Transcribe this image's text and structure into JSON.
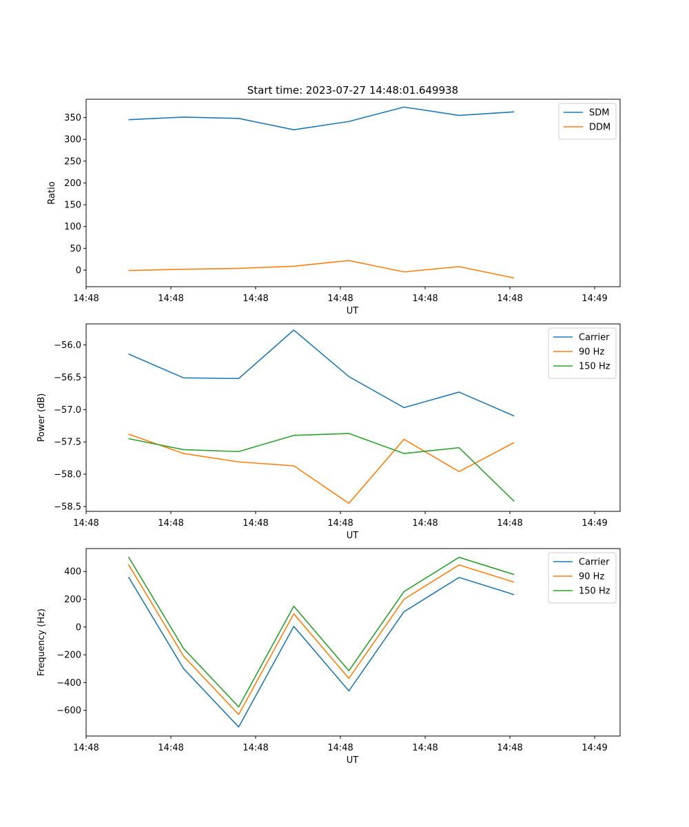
{
  "figure_title": "Start time: 2023-07-27 14:48:01.649938",
  "chart_data": [
    {
      "type": "line",
      "name": "ratio",
      "title": "Start time: 2023-07-27 14:48:01.649938",
      "xlabel": "UT",
      "ylabel": "Ratio",
      "xlim": [
        0,
        6.3
      ],
      "ylim": [
        -38,
        392
      ],
      "yticks": [
        0,
        50,
        100,
        150,
        200,
        250,
        300,
        350
      ],
      "ytick_labels": [
        "0",
        "50",
        "100",
        "150",
        "200",
        "250",
        "300",
        "350"
      ],
      "xticks": [
        0,
        1,
        2,
        3,
        4,
        5,
        6
      ],
      "xtick_labels": [
        "14:48",
        "14:48",
        "14:48",
        "14:48",
        "14:48",
        "14:48",
        "14:49"
      ],
      "x": [
        0.5,
        1.15,
        1.8,
        2.45,
        3.1,
        3.75,
        4.4,
        5.05
      ],
      "series": [
        {
          "name": "SDM",
          "color": "#1f77b4",
          "values": [
            345,
            351,
            348,
            322,
            341,
            374,
            355,
            363
          ]
        },
        {
          "name": "DDM",
          "color": "#ff7f0e",
          "values": [
            -1,
            2,
            4,
            9,
            22,
            -4,
            8,
            -18
          ]
        }
      ],
      "legend": "upper right"
    },
    {
      "type": "line",
      "name": "power",
      "title": "",
      "xlabel": "UT",
      "ylabel": "Power (dB)",
      "xlim": [
        0,
        6.3
      ],
      "ylim": [
        -58.575,
        -55.675
      ],
      "yticks": [
        -58.5,
        -58.0,
        -57.5,
        -57.0,
        -56.5,
        -56.0
      ],
      "ytick_labels": [
        "−58.5",
        "−58.0",
        "−57.5",
        "−57.0",
        "−56.5",
        "−56.0"
      ],
      "xticks": [
        0,
        1,
        2,
        3,
        4,
        5,
        6
      ],
      "xtick_labels": [
        "14:48",
        "14:48",
        "14:48",
        "14:48",
        "14:48",
        "14:48",
        "14:49"
      ],
      "x": [
        0.5,
        1.15,
        1.8,
        2.45,
        3.1,
        3.75,
        4.4,
        5.05
      ],
      "series": [
        {
          "name": "Carrier",
          "color": "#1f77b4",
          "values": [
            -56.14,
            -56.51,
            -56.52,
            -55.77,
            -56.49,
            -56.97,
            -56.73,
            -57.1
          ]
        },
        {
          "name": "90 Hz",
          "color": "#ff7f0e",
          "values": [
            -57.38,
            -57.68,
            -57.81,
            -57.87,
            -58.45,
            -57.46,
            -57.96,
            -57.51
          ]
        },
        {
          "name": "150 Hz",
          "color": "#2ca02c",
          "values": [
            -57.45,
            -57.62,
            -57.65,
            -57.4,
            -57.37,
            -57.68,
            -57.59,
            -58.42
          ]
        }
      ],
      "legend": "upper right"
    },
    {
      "type": "line",
      "name": "frequency",
      "title": "",
      "xlabel": "UT",
      "ylabel": "Frequency (Hz)",
      "xlim": [
        0,
        6.3
      ],
      "ylim": [
        -785,
        565
      ],
      "yticks": [
        -600,
        -400,
        -200,
        0,
        200,
        400
      ],
      "ytick_labels": [
        "−600",
        "−400",
        "−200",
        "0",
        "200",
        "400"
      ],
      "xticks": [
        0,
        1,
        2,
        3,
        4,
        5,
        6
      ],
      "xtick_labels": [
        "14:48",
        "14:48",
        "14:48",
        "14:48",
        "14:48",
        "14:48",
        "14:49"
      ],
      "x": [
        0.5,
        1.15,
        1.8,
        2.45,
        3.1,
        3.75,
        4.4,
        5.05
      ],
      "series": [
        {
          "name": "Carrier",
          "color": "#1f77b4",
          "values": [
            360,
            -300,
            -720,
            5,
            -460,
            110,
            357,
            233
          ]
        },
        {
          "name": "90 Hz",
          "color": "#ff7f0e",
          "values": [
            450,
            -210,
            -630,
            95,
            -370,
            200,
            447,
            323
          ]
        },
        {
          "name": "150 Hz",
          "color": "#2ca02c",
          "values": [
            505,
            -155,
            -575,
            150,
            -315,
            255,
            502,
            378
          ]
        }
      ],
      "legend": "upper right"
    }
  ]
}
